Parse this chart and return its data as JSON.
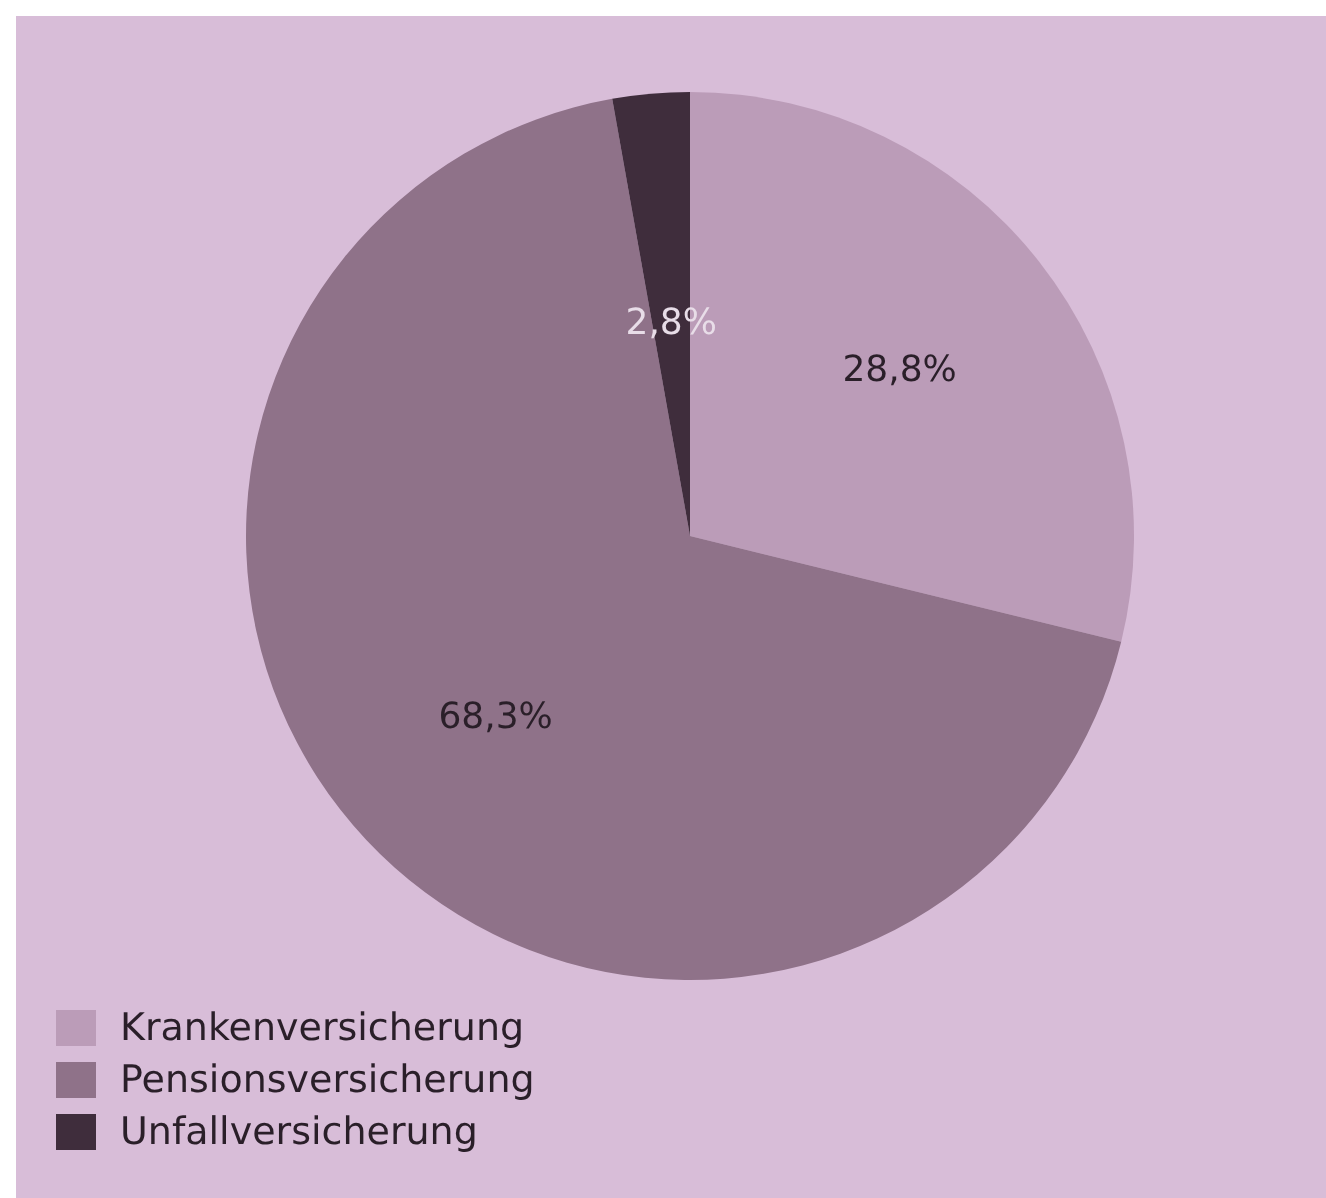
{
  "chart_data": {
    "type": "pie",
    "categories": [
      "Krankenversicherung",
      "Pensionsversicherung",
      "Unfallversicherung"
    ],
    "values": [
      28.8,
      68.3,
      2.8
    ],
    "colors": [
      "#bb9cb8",
      "#8f7289",
      "#3f2d3c"
    ],
    "value_labels": [
      "28,8%",
      "68,3%",
      "2,8%"
    ],
    "legend": "bottom left"
  }
}
